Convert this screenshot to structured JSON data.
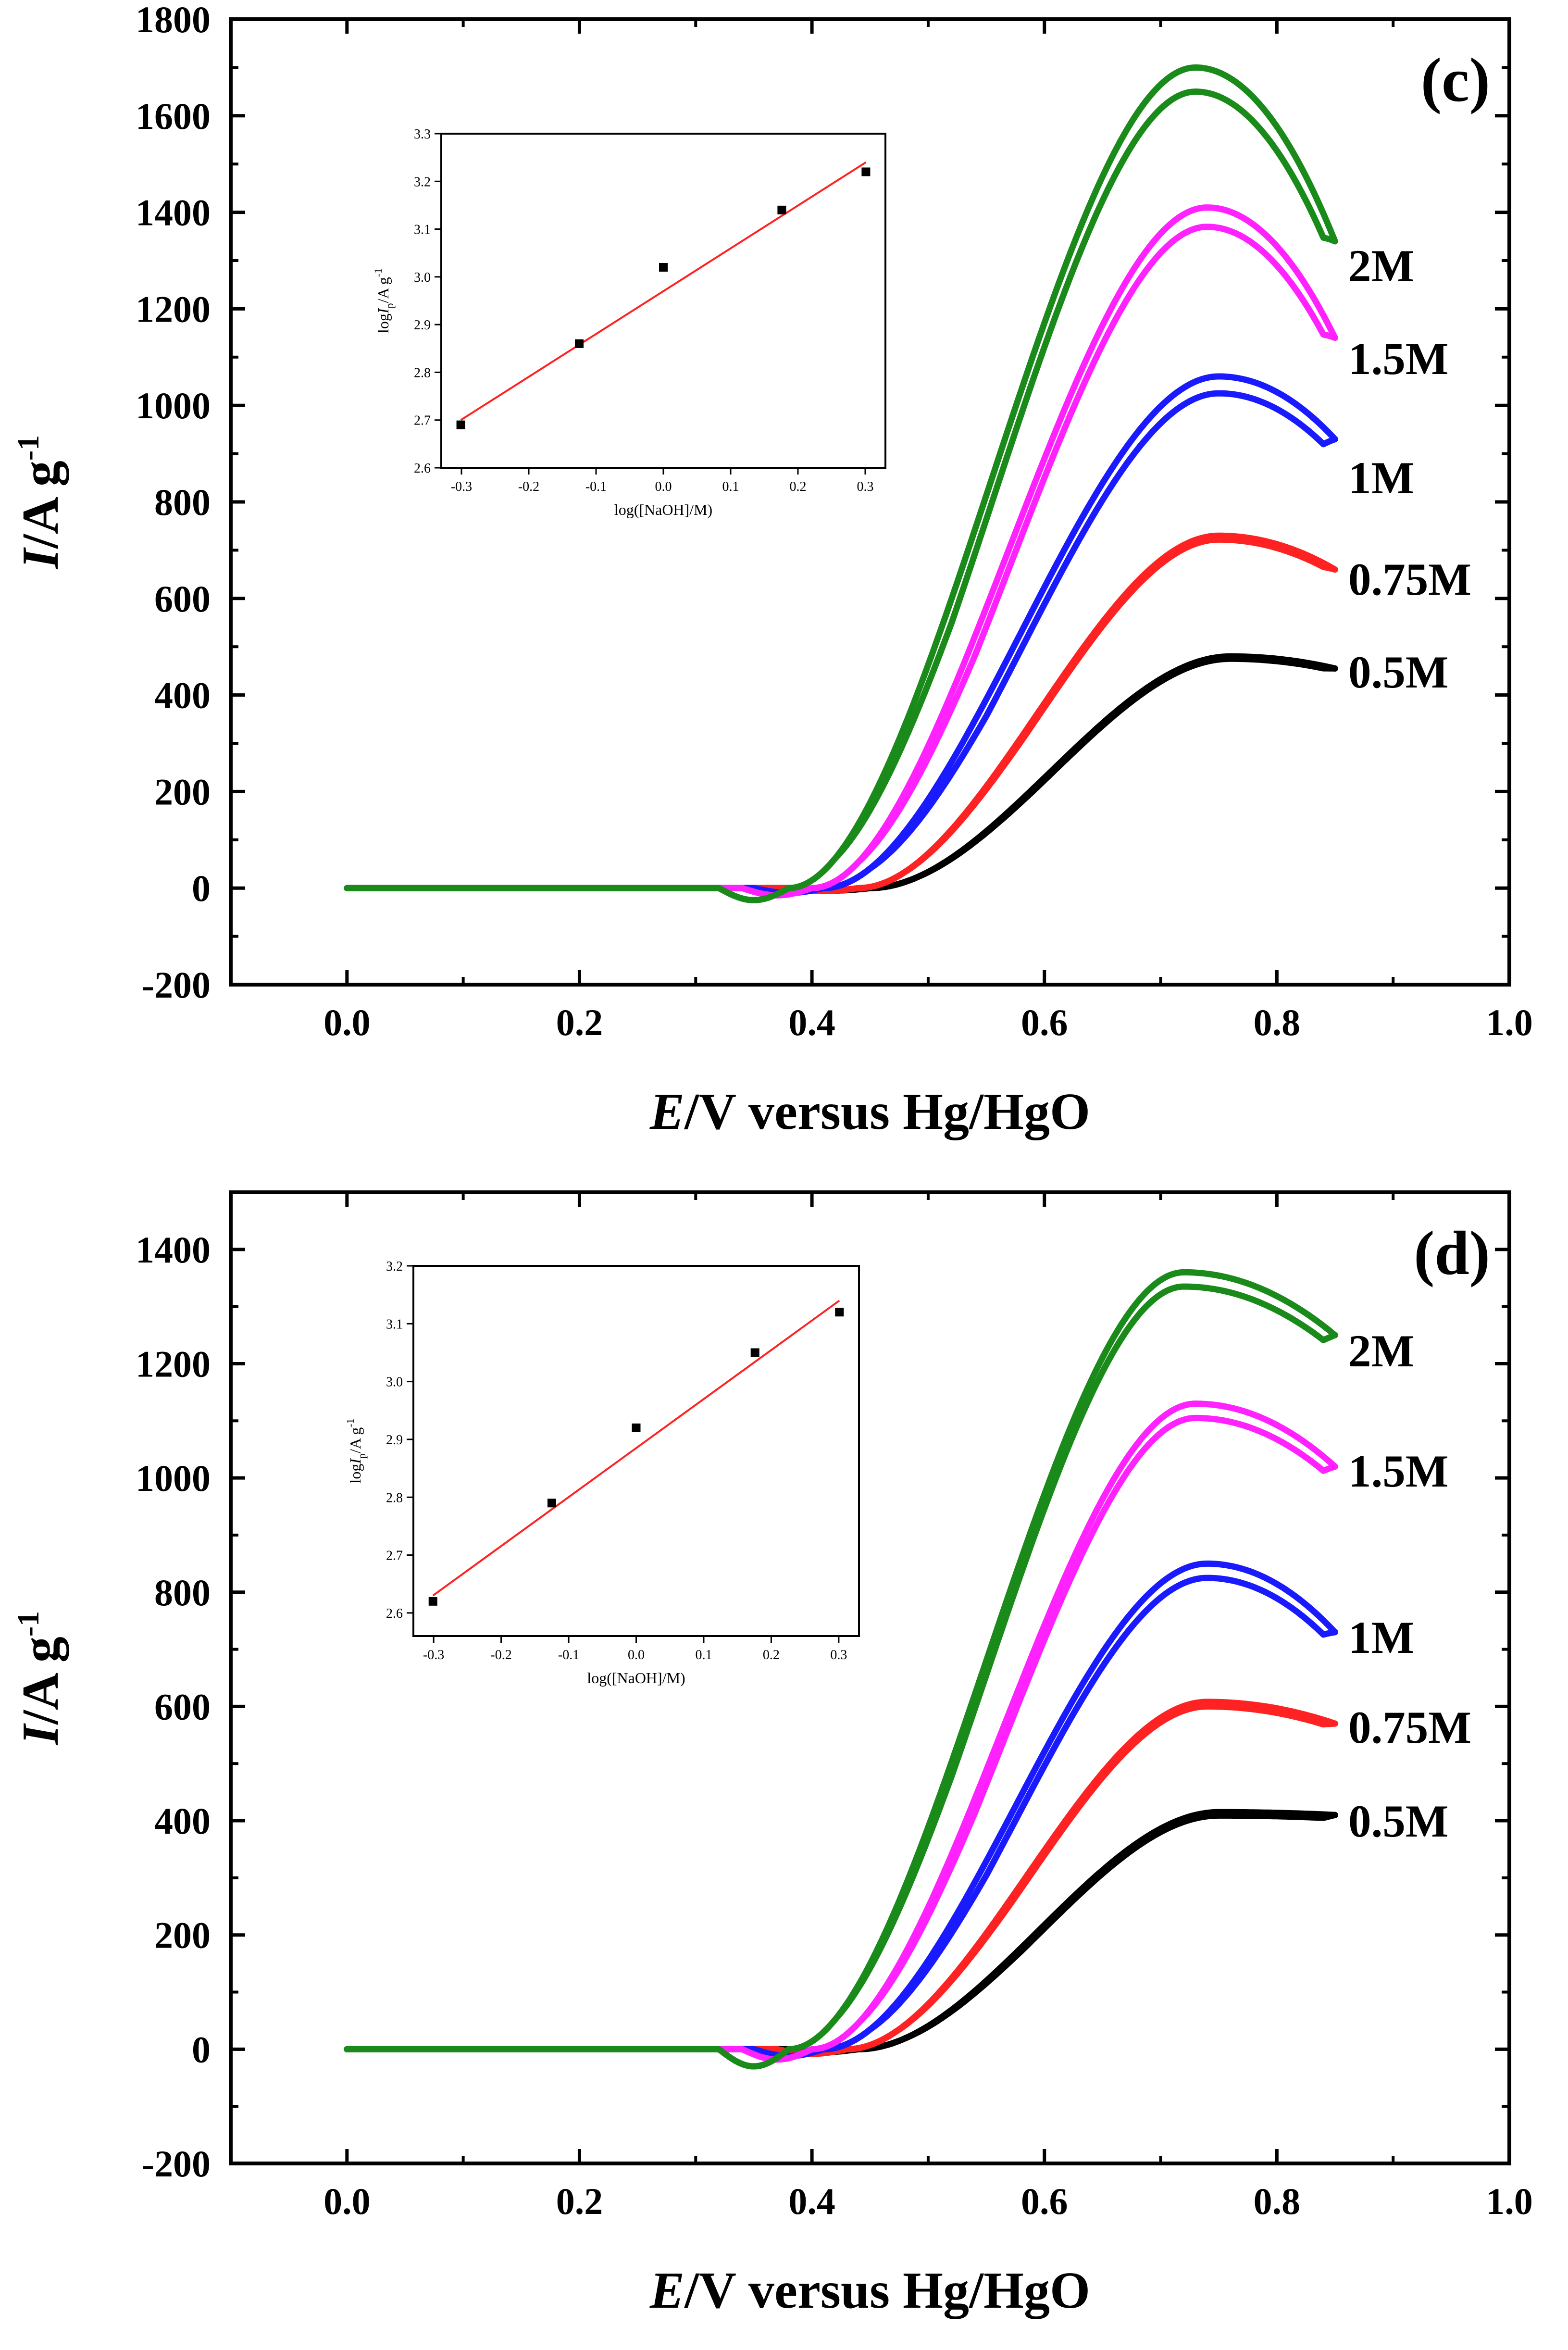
{
  "chart_data": [
    {
      "type": "line",
      "panel_label": "(c)",
      "xlabel_italic": "E",
      "xlabel_rest": "/V versus Hg/HgO",
      "ylabel_italic": "I",
      "ylabel_rest": "/A g",
      "ylabel_sup": "-1",
      "xlim": [
        -0.1,
        1.0
      ],
      "ylim": [
        -200,
        1800
      ],
      "xticks": [
        0.0,
        0.2,
        0.4,
        0.6,
        0.8,
        1.0
      ],
      "xtick_labels": [
        "0.0",
        "0.2",
        "0.4",
        "0.6",
        "0.8",
        "1.0"
      ],
      "yticks": [
        -200,
        0,
        200,
        400,
        600,
        800,
        1000,
        1200,
        1400,
        1600,
        1800
      ],
      "ytick_labels": [
        "-200",
        "0",
        "200",
        "400",
        "600",
        "800",
        "1000",
        "1200",
        "1400",
        "1600",
        "1800"
      ],
      "series": [
        {
          "name": "0.5M",
          "color": "#000000",
          "onset": 0.45,
          "peak_x": 0.76,
          "peak": 480,
          "end_value": 455,
          "gap": 5,
          "dip": -5
        },
        {
          "name": "0.75M",
          "color": "#ff2222",
          "onset": 0.44,
          "peak_x": 0.75,
          "peak": 730,
          "end_value": 660,
          "gap": 8,
          "dip": -6
        },
        {
          "name": "1M",
          "color": "#1a1aff",
          "onset": 0.41,
          "peak_x": 0.75,
          "peak": 1060,
          "end_value": 930,
          "gap": 35,
          "dip": -10
        },
        {
          "name": "1.5M",
          "color": "#ff22ff",
          "onset": 0.4,
          "peak_x": 0.74,
          "peak": 1410,
          "end_value": 1140,
          "gap": 40,
          "dip": -15
        },
        {
          "name": "2M",
          "color": "#1a8a1a",
          "onset": 0.38,
          "peak_x": 0.73,
          "peak": 1700,
          "end_value": 1340,
          "gap": 50,
          "dip": -25
        }
      ],
      "inset": {
        "xlabel": "log([NaOH]/M)",
        "ylabel_pre": "log",
        "ylabel_italic": "I",
        "ylabel_sub": "p",
        "ylabel_rest": "/A g",
        "ylabel_sup": "-1",
        "xlim": [
          -0.33,
          0.33
        ],
        "ylim": [
          2.6,
          3.3
        ],
        "xticks": [
          -0.3,
          -0.2,
          -0.1,
          0.0,
          0.1,
          0.2,
          0.3
        ],
        "xtick_labels": [
          "-0.3",
          "-0.2",
          "-0.1",
          "0.0",
          "0.1",
          "0.2",
          "0.3"
        ],
        "yticks": [
          2.6,
          2.7,
          2.8,
          2.9,
          3.0,
          3.1,
          3.2,
          3.3
        ],
        "ytick_labels": [
          "2.6",
          "2.7",
          "2.8",
          "2.9",
          "3.0",
          "3.1",
          "3.2",
          "3.3"
        ],
        "points_x": [
          -0.301,
          -0.125,
          0.0,
          0.176,
          0.301
        ],
        "points_y": [
          2.69,
          2.86,
          3.02,
          3.14,
          3.22
        ],
        "fit": [
          [
            -0.301,
            2.7
          ],
          [
            0.301,
            3.24
          ]
        ],
        "fit_color": "#ff2222"
      }
    },
    {
      "type": "line",
      "panel_label": "(d)",
      "xlabel_italic": "E",
      "xlabel_rest": "/V versus Hg/HgO",
      "ylabel_italic": "I",
      "ylabel_rest": "/A g",
      "ylabel_sup": "-1",
      "xlim": [
        -0.1,
        1.0
      ],
      "ylim": [
        -200,
        1500
      ],
      "xticks": [
        0.0,
        0.2,
        0.4,
        0.6,
        0.8,
        1.0
      ],
      "xtick_labels": [
        "0.0",
        "0.2",
        "0.4",
        "0.6",
        "0.8",
        "1.0"
      ],
      "yticks": [
        -200,
        0,
        200,
        400,
        600,
        800,
        1000,
        1200,
        1400
      ],
      "ytick_labels": [
        "-200",
        "0",
        "200",
        "400",
        "600",
        "800",
        "1000",
        "1200",
        "1400"
      ],
      "series": [
        {
          "name": "0.5M",
          "color": "#000000",
          "onset": 0.44,
          "peak_x": 0.75,
          "peak": 415,
          "end_value": 410,
          "gap": 6,
          "dip": -5
        },
        {
          "name": "0.75M",
          "color": "#ff2222",
          "onset": 0.43,
          "peak_x": 0.74,
          "peak": 608,
          "end_value": 570,
          "gap": 8,
          "dip": -8
        },
        {
          "name": "1M",
          "color": "#1a1aff",
          "onset": 0.41,
          "peak_x": 0.74,
          "peak": 850,
          "end_value": 730,
          "gap": 25,
          "dip": -12
        },
        {
          "name": "1.5M",
          "color": "#ff22ff",
          "onset": 0.4,
          "peak_x": 0.73,
          "peak": 1130,
          "end_value": 1020,
          "gap": 25,
          "dip": -18
        },
        {
          "name": "2M",
          "color": "#1a8a1a",
          "onset": 0.38,
          "peak_x": 0.72,
          "peak": 1360,
          "end_value": 1250,
          "gap": 25,
          "dip": -30
        }
      ],
      "inset": {
        "xlabel": "log([NaOH]/M)",
        "ylabel_pre": "log",
        "ylabel_italic": "I",
        "ylabel_sub": "p",
        "ylabel_rest": "/A g",
        "ylabel_sup": "-1",
        "xlim": [
          -0.33,
          0.33
        ],
        "ylim": [
          2.56,
          3.2
        ],
        "xticks": [
          -0.3,
          -0.2,
          -0.1,
          0.0,
          0.1,
          0.2,
          0.3
        ],
        "xtick_labels": [
          "-0.3",
          "-0.2",
          "-0.1",
          "0.0",
          "0.1",
          "0.2",
          "0.3"
        ],
        "yticks": [
          2.6,
          2.7,
          2.8,
          2.9,
          3.0,
          3.1,
          3.2
        ],
        "ytick_labels": [
          "2.6",
          "2.7",
          "2.8",
          "2.9",
          "3.0",
          "3.1",
          "3.2"
        ],
        "points_x": [
          -0.301,
          -0.125,
          0.0,
          0.176,
          0.301
        ],
        "points_y": [
          2.62,
          2.79,
          2.92,
          3.05,
          3.12
        ],
        "fit": [
          [
            -0.301,
            2.63
          ],
          [
            0.301,
            3.14
          ]
        ],
        "fit_color": "#ff2222"
      }
    }
  ]
}
